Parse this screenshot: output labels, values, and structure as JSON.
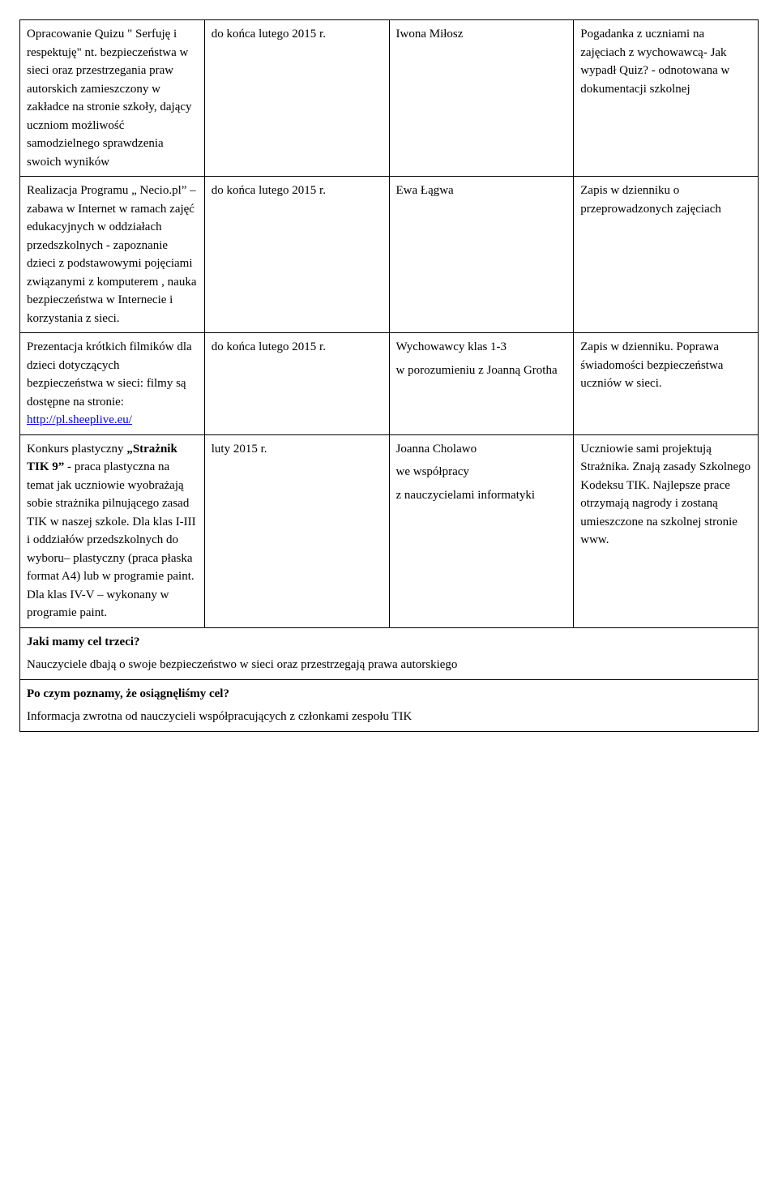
{
  "rows": [
    {
      "c1": "Opracowanie  Quizu \" Serfuję i respektuję\" nt. bezpieczeństwa   w sieci oraz przestrzegania praw autorskich zamieszczony  w zakładce na stronie szkoły, dający  uczniom możliwość samodzielnego sprawdzenia swoich wyników",
      "c2": "do końca lutego 2015 r.",
      "c3": "Iwona Miłosz",
      "c4": "Pogadanka z uczniami na zajęciach z wychowawcą- Jak wypadł Quiz? - odnotowana w dokumentacji szkolnej"
    },
    {
      "c1": "Realizacja Programu  „ Necio.pl” – zabawa w Internet w ramach zajęć edukacyjnych w oddziałach przedszkolnych  - zapoznanie dzieci z podstawowymi pojęciami związanymi z komputerem , nauka bezpieczeństwa w Internecie i  korzystania z sieci.",
      "c2": "do końca lutego 2015 r.",
      "c3": "Ewa Łągwa",
      "c4": "Zapis w dzienniku o przeprowadzonych zajęciach"
    },
    {
      "c1_pre": "Prezentacja krótkich filmików  dla  dzieci dotyczących bezpieczeństwa w sieci: filmy są dostępne na stronie: ",
      "c1_link": "http://pl.sheeplive.eu/",
      "c2": "do końca lutego 2015 r.",
      "c3_line1": "Wychowawcy klas 1-3",
      "c3_line2": "w porozumieniu z Joanną Grotha",
      "c4": "Zapis w dzienniku. Poprawa świadomości bezpieczeństwa uczniów w sieci."
    },
    {
      "c1_pre": "Konkurs plastyczny ",
      "c1_bold": "„Strażnik TIK 9”",
      "c1_post": " - praca plastyczna na temat  jak uczniowie wyobrażają sobie strażnika pilnującego zasad TIK w naszej szkole. Dla klas I-III i oddziałów przedszkolnych do wyboru– plastyczny (praca płaska format A4) lub w programie paint. Dla klas IV-V – wykonany w programie paint.",
      "c2": "luty 2015 r.",
      "c3_line1": "Joanna Cholawo",
      "c3_line2": "we współpracy",
      "c3_line3": "z nauczycielami informatyki",
      "c4": "Uczniowie sami projektują Strażnika. Znają zasady Szkolnego Kodeksu TIK. Najlepsze prace otrzymają nagrody i zostaną  umieszczone na szkolnej stronie www."
    }
  ],
  "section1": {
    "heading": "Jaki mamy cel trzeci?",
    "text": "Nauczyciele dbają o swoje bezpieczeństwo w sieci oraz przestrzegają prawa autorskiego"
  },
  "section2": {
    "heading": "Po czym poznamy, że osiągnęliśmy cel?",
    "text": "Informacja zwrotna od nauczycieli współpracujących z członkami zespołu TIK"
  }
}
